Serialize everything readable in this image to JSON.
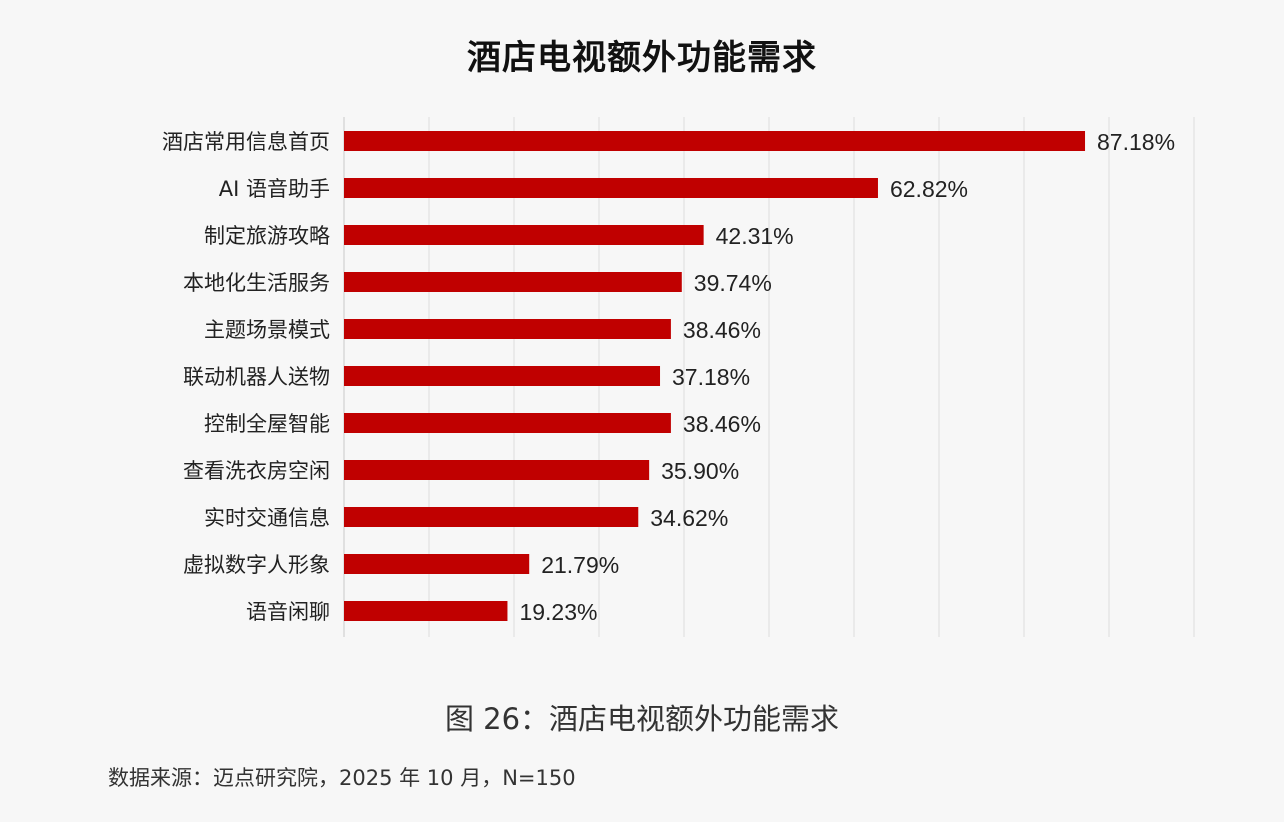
{
  "chart_data": {
    "type": "bar",
    "orientation": "horizontal",
    "title": "酒店电视额外功能需求",
    "categories": [
      "酒店常用信息首页",
      "AI 语音助手",
      "制定旅游攻略",
      "本地化生活服务",
      "主题场景模式",
      "联动机器人送物",
      "控制全屋智能",
      "查看洗衣房空闲",
      "实时交通信息",
      "虚拟数字人形象",
      "语音闲聊"
    ],
    "values": [
      87.18,
      62.82,
      42.31,
      39.74,
      38.46,
      37.18,
      38.46,
      35.9,
      34.62,
      21.79,
      19.23
    ],
    "value_labels": [
      "87.18%",
      "62.82%",
      "42.31%",
      "39.74%",
      "38.46%",
      "37.18%",
      "38.46%",
      "35.90%",
      "34.62%",
      "21.79%",
      "19.23%"
    ],
    "xlim": [
      0,
      100
    ],
    "grid": true,
    "bar_color": "#c00000"
  },
  "caption": "图 26：酒店电视额外功能需求",
  "source": "数据来源：迈点研究院，2025 年 10 月，N=150"
}
